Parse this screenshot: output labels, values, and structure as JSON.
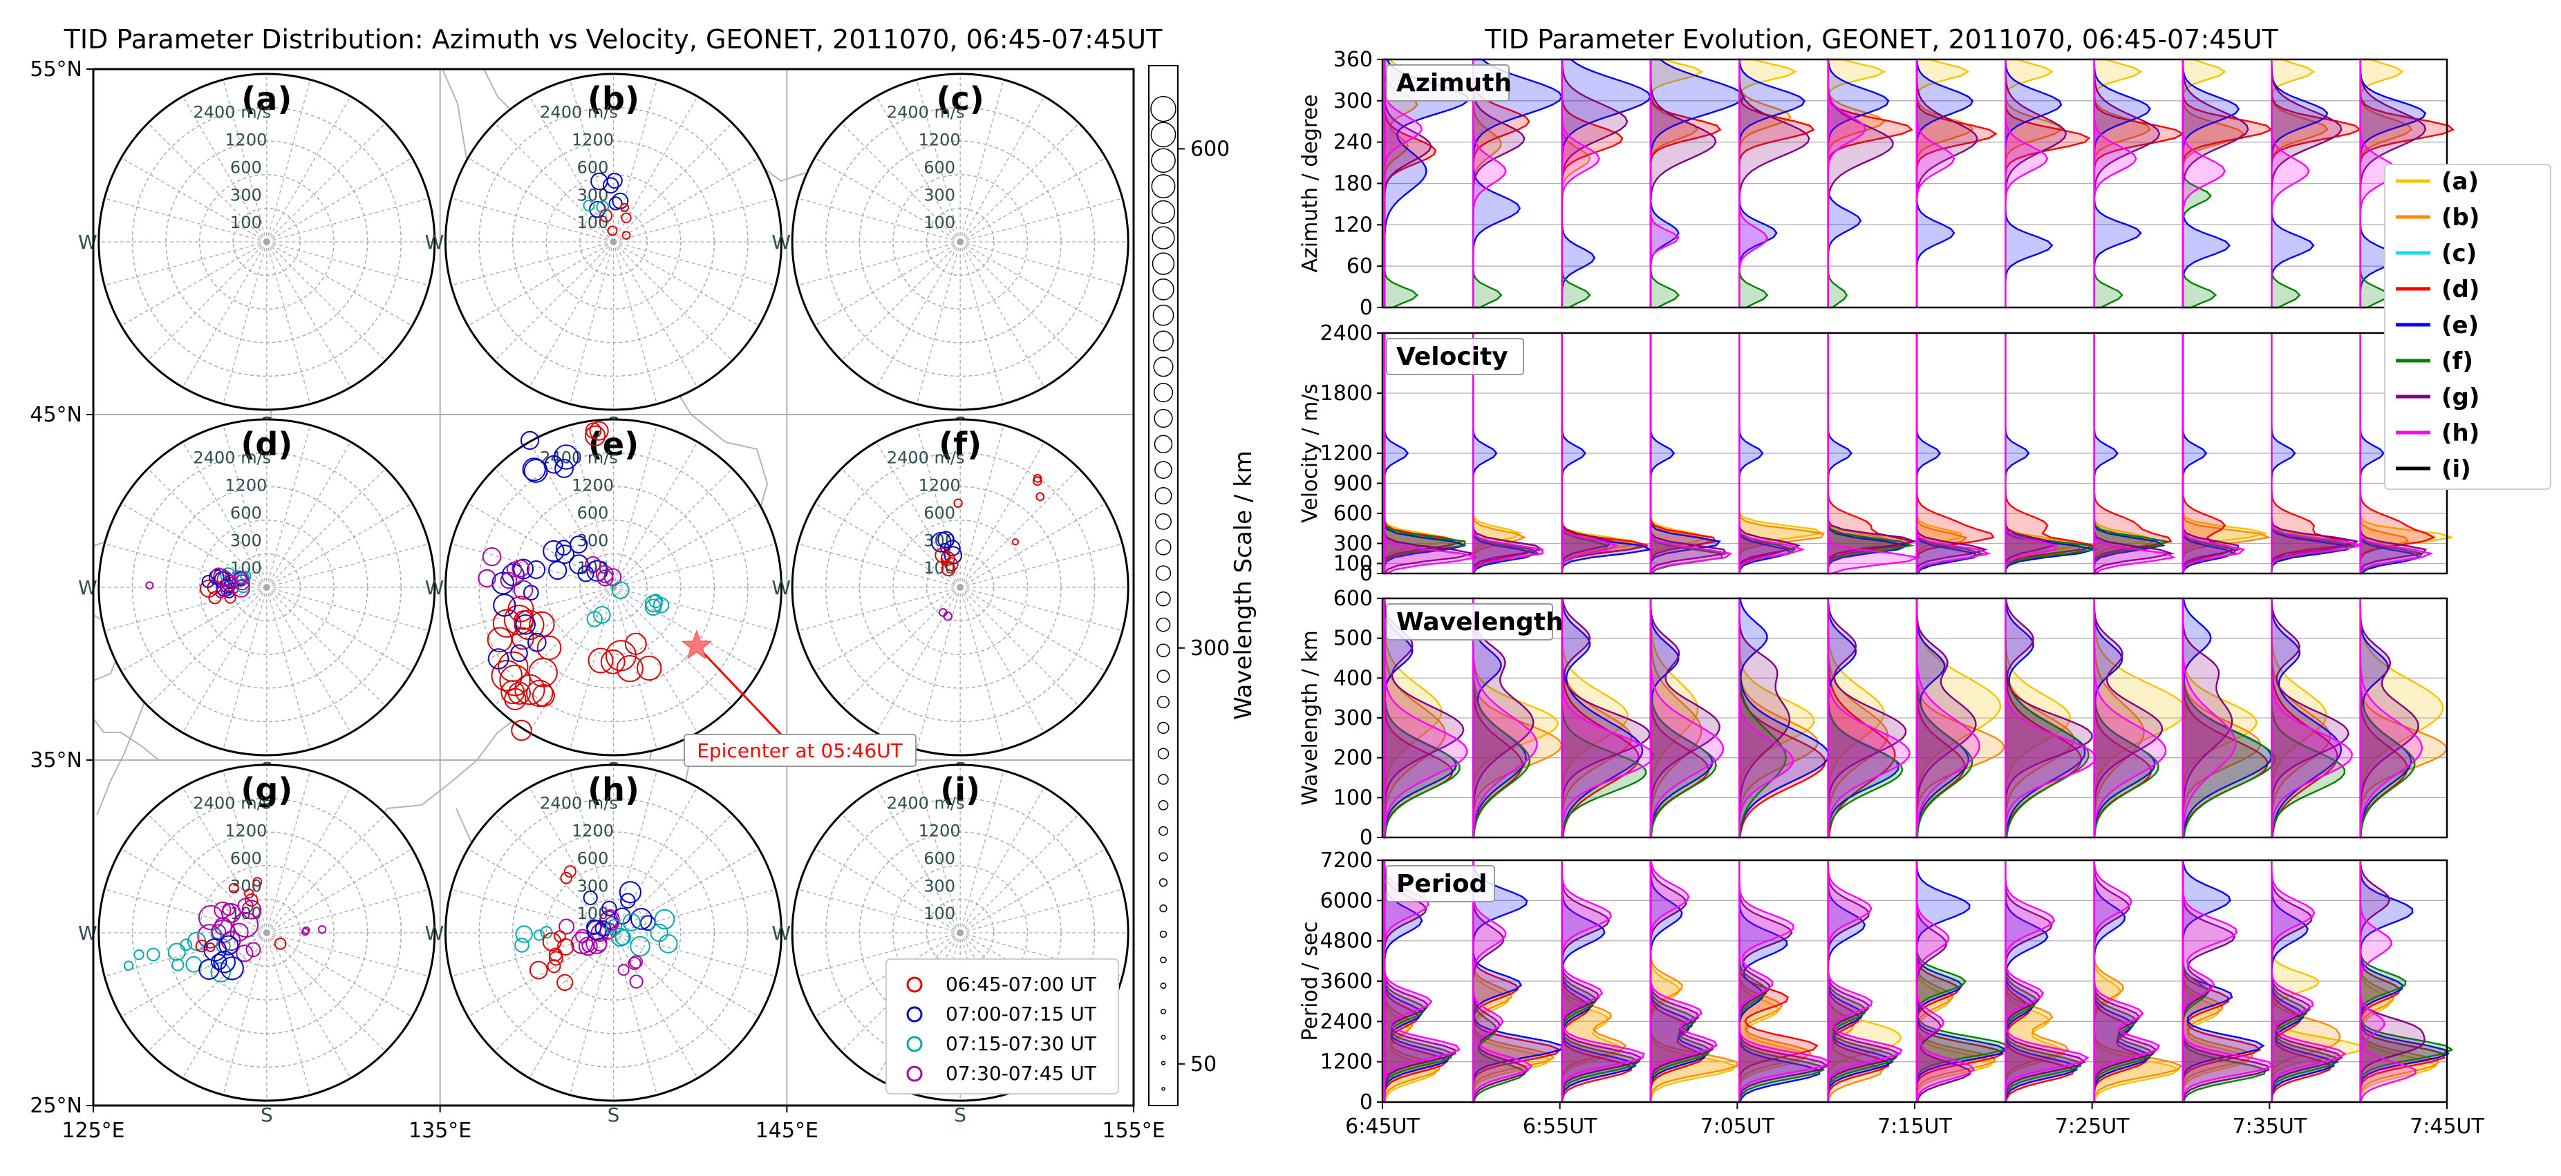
{
  "colors": {
    "a": "#f5c400",
    "b": "#ff8c00",
    "c": "#00e5ee",
    "d": "#ff0000",
    "e": "#0000ff",
    "f": "#008000",
    "g": "#800080",
    "h": "#ff00ff",
    "i": "#000000",
    "leg_red": "#dd0000",
    "leg_blue": "#0000cc",
    "leg_cyan": "#00aaaa",
    "leg_purple": "#aa00aa",
    "epicenter": "#ff0000",
    "star": "#ff7777"
  },
  "chart_data": [
    {
      "type": "scatter",
      "title": "TID Parameter Distribution: Azimuth vs Velocity, GEONET, 2011070, 06:45-07:45UT",
      "x_ticks": [
        "125°E",
        "135°E",
        "145°E",
        "155°E"
      ],
      "y_ticks": [
        "55°N",
        "45°N",
        "35°N",
        "25°N"
      ],
      "xlim": [
        125,
        155
      ],
      "ylim": [
        25,
        55
      ],
      "panel_labels": [
        "(a)",
        "(b)",
        "(c)",
        "(d)",
        "(e)",
        "(f)",
        "(g)",
        "(h)",
        "(i)"
      ],
      "panel_centers": [
        [
          130,
          50
        ],
        [
          140,
          50
        ],
        [
          150,
          50
        ],
        [
          130,
          40
        ],
        [
          140,
          40
        ],
        [
          150,
          40
        ],
        [
          130,
          30
        ],
        [
          140,
          30
        ],
        [
          150,
          30
        ]
      ],
      "ring_labels": [
        "2400 m/s",
        "1200",
        "600",
        "300",
        "100"
      ],
      "compass": {
        "west": "W",
        "south": "S"
      },
      "epicenter_label": "Epicenter at 05:46UT",
      "epicenter_lonlat": [
        142.4,
        38.3
      ],
      "legend": [
        {
          "label": "06:45-07:00 UT",
          "color": "red"
        },
        {
          "label": "07:00-07:15 UT",
          "color": "blue"
        },
        {
          "label": "07:15-07:30 UT",
          "color": "cyan"
        },
        {
          "label": "07:30-07:45 UT",
          "color": "purple"
        }
      ],
      "colorbar_label": "Wavelength Scale / km",
      "colorbar_ticks": [
        {
          "value": 600,
          "label": "600"
        },
        {
          "value": 300,
          "label": "300"
        },
        {
          "value": 50,
          "label": "50"
        }
      ],
      "colorbar_range": [
        25,
        650
      ]
    },
    {
      "type": "area",
      "title": "TID Parameter Evolution, GEONET, 2011070, 06:45-07:45UT",
      "x_ticks": [
        "6:45UT",
        "6:55UT",
        "7:05UT",
        "7:15UT",
        "7:25UT",
        "7:35UT",
        "7:45UT"
      ],
      "n_windows": 12,
      "panels": [
        {
          "name": "Azimuth",
          "ylabel": "Azimuth / degree",
          "ylim": [
            0,
            360
          ],
          "ticks": [
            {
              "v": 0,
              "l": "0"
            },
            {
              "v": 60,
              "l": "60"
            },
            {
              "v": 120,
              "l": "120"
            },
            {
              "v": 180,
              "l": "180"
            },
            {
              "v": 240,
              "l": "240"
            },
            {
              "v": 300,
              "l": "300"
            },
            {
              "v": 360,
              "l": "360"
            }
          ]
        },
        {
          "name": "Velocity",
          "ylabel": "Velocity / m/s",
          "ylim": [
            0,
            2400
          ],
          "ticks": [
            {
              "v": 0,
              "l": "0"
            },
            {
              "v": 100,
              "l": "100"
            },
            {
              "v": 300,
              "l": "300"
            },
            {
              "v": 600,
              "l": "600"
            },
            {
              "v": 900,
              "l": "900"
            },
            {
              "v": 1200,
              "l": "1200"
            },
            {
              "v": 1800,
              "l": "1800"
            },
            {
              "v": 2400,
              "l": "2400"
            }
          ]
        },
        {
          "name": "Wavelength",
          "ylabel": "Wavelength / km",
          "ylim": [
            0,
            600
          ],
          "ticks": [
            {
              "v": 0,
              "l": "0"
            },
            {
              "v": 100,
              "l": "100"
            },
            {
              "v": 200,
              "l": "200"
            },
            {
              "v": 300,
              "l": "300"
            },
            {
              "v": 400,
              "l": "400"
            },
            {
              "v": 500,
              "l": "500"
            },
            {
              "v": 600,
              "l": "600"
            }
          ]
        },
        {
          "name": "Period",
          "ylabel": "Period / sec",
          "ylim": [
            0,
            7200
          ],
          "ticks": [
            {
              "v": 0,
              "l": "0"
            },
            {
              "v": 1200,
              "l": "1200"
            },
            {
              "v": 2400,
              "l": "2400"
            },
            {
              "v": 3600,
              "l": "3600"
            },
            {
              "v": 4800,
              "l": "4800"
            },
            {
              "v": 6000,
              "l": "6000"
            },
            {
              "v": 7200,
              "l": "7200"
            }
          ]
        }
      ],
      "legend": [
        "(a)",
        "(b)",
        "(c)",
        "(d)",
        "(e)",
        "(f)",
        "(g)",
        "(h)",
        "(i)"
      ]
    }
  ]
}
